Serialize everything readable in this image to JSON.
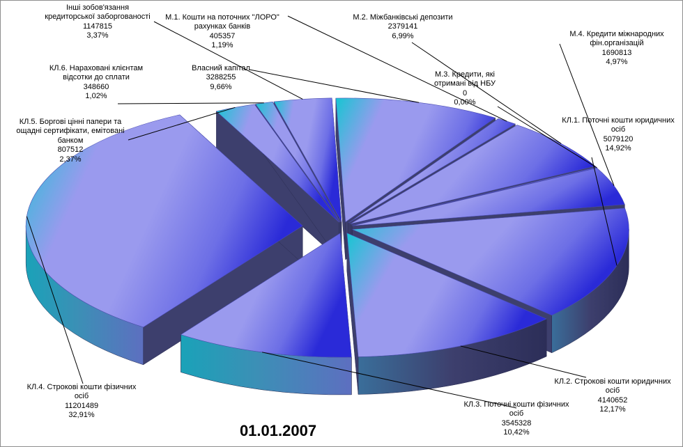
{
  "chart_data": {
    "type": "pie",
    "style": "3d-exploded",
    "title": "01.01.2007",
    "legend": "none",
    "slices": [
      {
        "name": "Власний капітал",
        "value": 3288255,
        "percent": "9,66%"
      },
      {
        "name": "М.1. Кошти на поточних \"ЛОРО\" рахунках банків",
        "value": 405357,
        "percent": "1,19%"
      },
      {
        "name": "М.2. Міжбанківські депозити",
        "value": 2379141,
        "percent": "6,99%"
      },
      {
        "name": "М.3. Кредити, які отримані від НБУ",
        "value": 0,
        "percent": "0,00%"
      },
      {
        "name": "М.4. Кредити міжнародних фін.організацій",
        "value": 1690813,
        "percent": "4,97%"
      },
      {
        "name": "КЛ.1. Поточні кошти юридичних осіб",
        "value": 5079120,
        "percent": "14,92%"
      },
      {
        "name": "КЛ.2. Строкові кошти юридичних осіб",
        "value": 4140652,
        "percent": "12,17%"
      },
      {
        "name": "КЛ.3. Поточні кошти фізичних осіб",
        "value": 3545328,
        "percent": "10,42%"
      },
      {
        "name": "КЛ.4. Строкові кошти фізичних осіб",
        "value": 11201489,
        "percent": "32,91%"
      },
      {
        "name": "КЛ.5. Боргові цінні папери та ощадні сертифікати, емітовані банком",
        "value": 807512,
        "percent": "2,37%"
      },
      {
        "name": "КЛ.6. Нараховані клієнтам відсотки до сплати",
        "value": 348660,
        "percent": "1,02%"
      },
      {
        "name": "Інші зобов'язання кредиторської заборгованості",
        "value": 1147815,
        "percent": "3,37%"
      }
    ],
    "labels": [
      {
        "lines": [
          "Власний капітал",
          "3288255",
          "9,66%"
        ]
      },
      {
        "lines": [
          "М.1. Кошти на поточних \"ЛОРО\"",
          "рахунках банків",
          "405357",
          "1,19%"
        ]
      },
      {
        "lines": [
          "М.2. Міжбанківські депозити",
          "2379141",
          "6,99%"
        ]
      },
      {
        "lines": [
          "М.3. Кредити, які",
          "отримані від НБУ",
          "0",
          "0,00%"
        ]
      },
      {
        "lines": [
          "М.4. Кредити міжнародних",
          "фін.організацій",
          "1690813",
          "4,97%"
        ]
      },
      {
        "lines": [
          "КЛ.1. Поточні кошти юридичних",
          "осіб",
          "5079120",
          "14,92%"
        ]
      },
      {
        "lines": [
          "КЛ.2. Строкові кошти юридичних",
          "осіб",
          "4140652",
          "12,17%"
        ]
      },
      {
        "lines": [
          "КЛ.3. Поточні кошти фізичних",
          "осіб",
          "3545328",
          "10,42%"
        ]
      },
      {
        "lines": [
          "КЛ.4. Строкові кошти фізичних",
          "осіб",
          "11201489",
          "32,91%"
        ]
      },
      {
        "lines": [
          "КЛ.5. Боргові цінні папери та",
          "ощадні сертифікати, емітовані",
          "банком",
          "807512",
          "2,37%"
        ]
      },
      {
        "lines": [
          "КЛ.6. Нараховані  клієнтам",
          "відсотки до сплати",
          "348660",
          "1,02%"
        ]
      },
      {
        "lines": [
          "Інші зобов'язання",
          "кредиторської заборгованості",
          "1147815",
          "3,37%"
        ]
      }
    ],
    "colors": {
      "top_dark": "#2a2ad8",
      "top_light": "#9a9aee",
      "top_cyan": "#16c6d2",
      "side": "#3d3f6d",
      "leader": "#000000",
      "frame": "#8e8e8e"
    }
  }
}
